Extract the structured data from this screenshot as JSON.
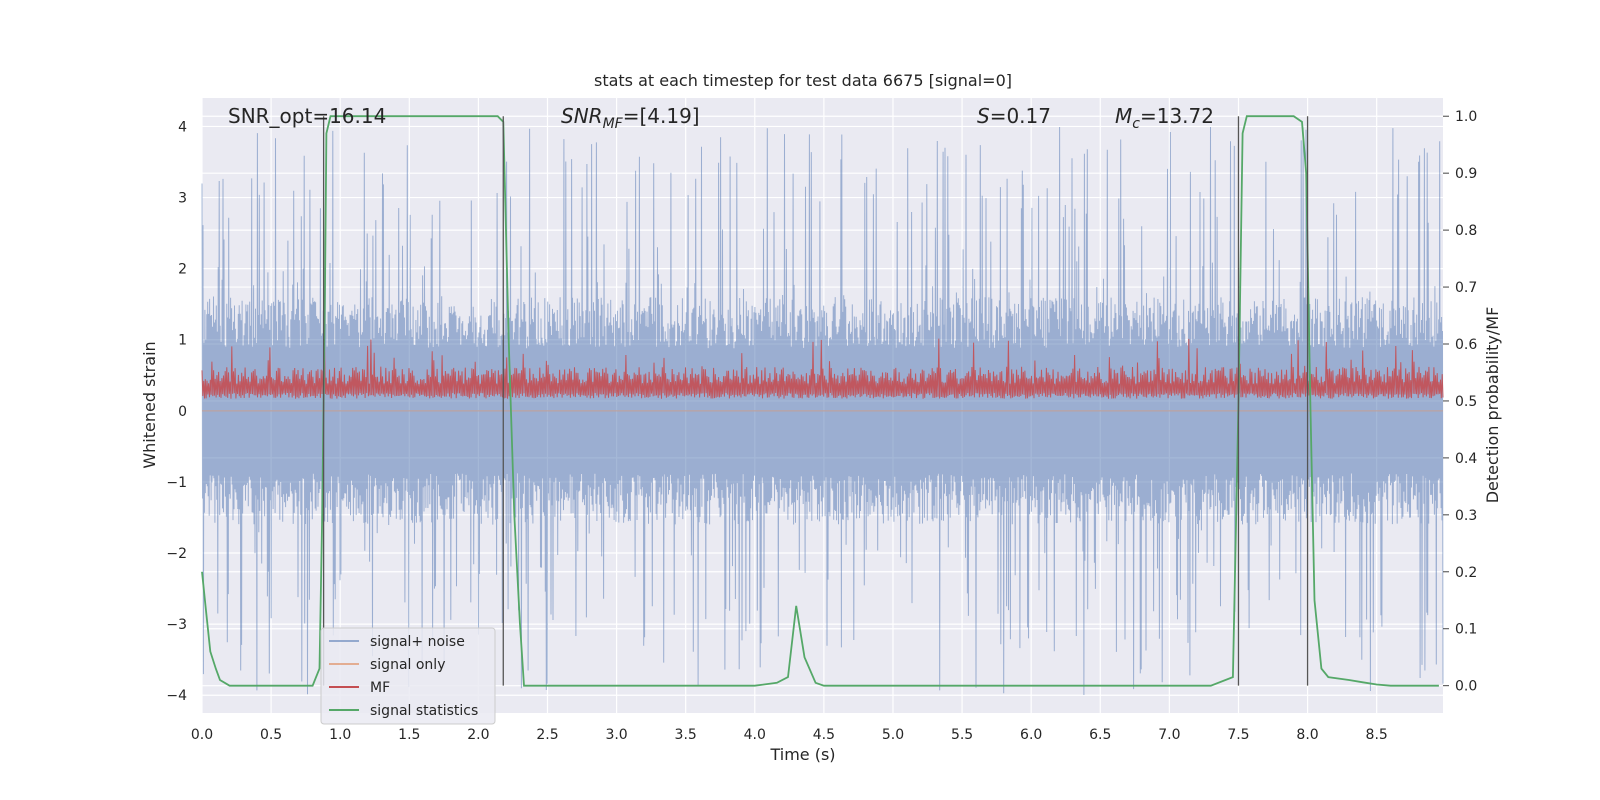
{
  "chart_data": {
    "type": "line",
    "title": "stats at each timestep for test data 6675 [signal=0]",
    "xlabel": "Time (s)",
    "ylabel": "Whitened strain",
    "y2label": "Detection probability/MF",
    "xlim": [
      0.0,
      8.98
    ],
    "ylim": [
      -4.25,
      4.4
    ],
    "y2lim": [
      -0.048,
      1.032
    ],
    "xticks": [
      "0.0",
      "0.5",
      "1.0",
      "1.5",
      "2.0",
      "2.5",
      "3.0",
      "3.5",
      "4.0",
      "4.5",
      "5.0",
      "5.5",
      "6.0",
      "6.5",
      "7.0",
      "7.5",
      "8.0",
      "8.5"
    ],
    "yticks": [
      "4",
      "3",
      "2",
      "1",
      "0",
      "−1",
      "−2",
      "−3",
      "−4"
    ],
    "y2ticks": [
      "1.0",
      "0.9",
      "0.8",
      "0.7",
      "0.6",
      "0.5",
      "0.4",
      "0.3",
      "0.2",
      "0.1",
      "0.0"
    ],
    "grid": true,
    "annotations": {
      "snr_opt": "SNR_opt=16.14",
      "snr_mf_sym": "SNR",
      "snr_mf_sub": "MF",
      "snr_mf_tail": "=[4.19]",
      "s_sym": "S",
      "s_tail": "=0.17",
      "mc_sym": "M",
      "mc_sub": "c",
      "mc_tail": "=13.72"
    },
    "vlines": [
      0.88,
      2.18,
      7.5,
      8.0
    ],
    "series": [
      {
        "name": "signal+ noise",
        "color": "#4c72b0",
        "axis": "left",
        "kind": "noise",
        "amplitude_typical": 1.6,
        "amplitude_max": 4.0
      },
      {
        "name": "signal only",
        "color": "#dd8452",
        "axis": "left",
        "kind": "flat",
        "value": 0.0
      },
      {
        "name": "MF",
        "color": "#c44e52",
        "axis": "right",
        "kind": "band",
        "baseline": 0.5,
        "typical_top": 0.56,
        "max": 0.61
      },
      {
        "name": "signal statistics",
        "color": "#55a868",
        "axis": "right",
        "x": [
          0.0,
          0.03,
          0.06,
          0.1,
          0.13,
          0.2,
          0.3,
          0.8,
          0.85,
          0.87,
          0.89,
          0.9,
          0.93,
          0.95,
          1.0,
          2.0,
          2.14,
          2.18,
          2.22,
          2.26,
          2.3,
          2.33,
          2.4,
          4.0,
          4.16,
          4.24,
          4.3,
          4.36,
          4.44,
          4.5,
          7.3,
          7.46,
          7.5,
          7.53,
          7.56,
          7.6,
          7.9,
          7.96,
          7.99,
          8.02,
          8.05,
          8.1,
          8.15,
          8.3,
          8.4,
          8.5,
          8.6,
          8.95
        ],
        "values": [
          0.2,
          0.13,
          0.06,
          0.03,
          0.01,
          0.0,
          0.0,
          0.0,
          0.03,
          0.3,
          0.7,
          0.97,
          1.0,
          1.0,
          1.0,
          1.0,
          1.0,
          0.99,
          0.6,
          0.3,
          0.11,
          0.0,
          0.0,
          0.0,
          0.005,
          0.015,
          0.14,
          0.05,
          0.005,
          0.0,
          0.0,
          0.015,
          0.5,
          0.97,
          1.0,
          1.0,
          1.0,
          0.99,
          0.9,
          0.5,
          0.15,
          0.03,
          0.015,
          0.01,
          0.006,
          0.002,
          0.0,
          0.0
        ]
      }
    ]
  }
}
